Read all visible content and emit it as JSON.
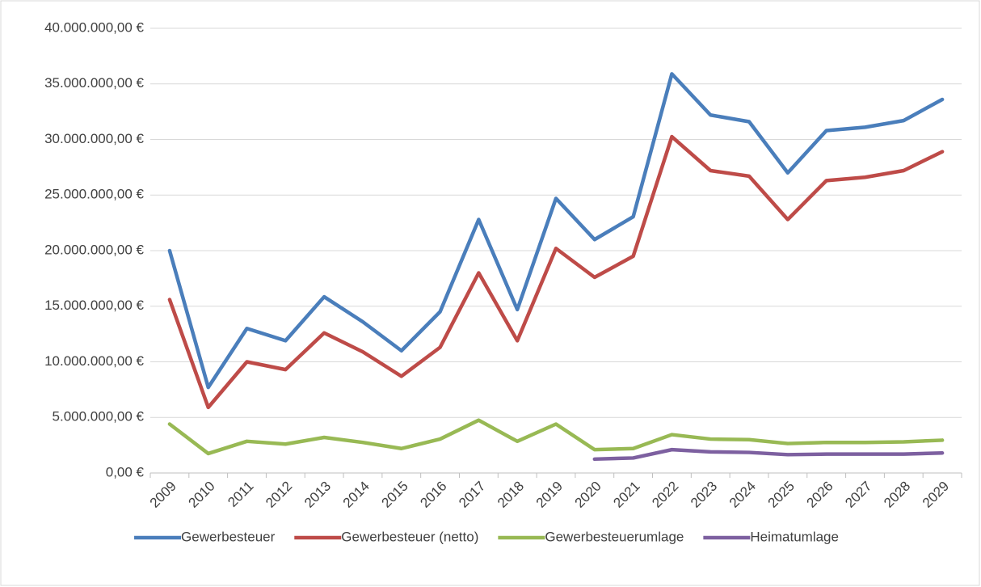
{
  "chart_data": {
    "type": "line",
    "categories": [
      "2009",
      "2010",
      "2011",
      "2012",
      "2013",
      "2014",
      "2015",
      "2016",
      "2017",
      "2018",
      "2019",
      "2020",
      "2021",
      "2022",
      "2023",
      "2024",
      "2025",
      "2026",
      "2027",
      "2028",
      "2029"
    ],
    "series": [
      {
        "name": "Gewerbesteuer",
        "color": "#4a7ebb",
        "values": [
          20000000,
          7700000,
          13000000,
          11900000,
          15850000,
          13600000,
          11000000,
          14500000,
          22800000,
          14700000,
          24700000,
          21000000,
          23050000,
          35900000,
          32200000,
          31600000,
          27000000,
          30800000,
          31100000,
          31700000,
          33600000
        ]
      },
      {
        "name": "Gewerbesteuer (netto)",
        "color": "#be4b48",
        "values": [
          15600000,
          5900000,
          10000000,
          9300000,
          12600000,
          10900000,
          8700000,
          11300000,
          18000000,
          11900000,
          20200000,
          17600000,
          19500000,
          30250000,
          27200000,
          26700000,
          22800000,
          26300000,
          26600000,
          27200000,
          28900000
        ]
      },
      {
        "name": "Gewerbesteuerumlage",
        "color": "#98b954",
        "values": [
          4400000,
          1750000,
          2850000,
          2600000,
          3200000,
          2750000,
          2200000,
          3050000,
          4750000,
          2850000,
          4400000,
          2100000,
          2200000,
          3450000,
          3050000,
          3000000,
          2650000,
          2750000,
          2750000,
          2800000,
          2950000
        ]
      },
      {
        "name": "Heimatumlage",
        "color": "#7d60a0",
        "values": [
          null,
          null,
          null,
          null,
          null,
          null,
          null,
          null,
          null,
          null,
          null,
          1250000,
          1350000,
          2100000,
          1900000,
          1850000,
          1650000,
          1700000,
          1700000,
          1700000,
          1800000
        ]
      }
    ],
    "ylim": [
      0,
      40000000
    ],
    "yticks": [
      {
        "value": 0,
        "label": "0,00 €"
      },
      {
        "value": 5000000,
        "label": "5.000.000,00 €"
      },
      {
        "value": 10000000,
        "label": "10.000.000,00 €"
      },
      {
        "value": 15000000,
        "label": "15.000.000,00 €"
      },
      {
        "value": 20000000,
        "label": "20.000.000,00 €"
      },
      {
        "value": 25000000,
        "label": "25.000.000,00 €"
      },
      {
        "value": 30000000,
        "label": "30.000.000,00 €"
      },
      {
        "value": 35000000,
        "label": "35.000.000,00 €"
      },
      {
        "value": 40000000,
        "label": "40.000.000,00 €"
      }
    ],
    "grid": true,
    "legend": "bottom"
  }
}
